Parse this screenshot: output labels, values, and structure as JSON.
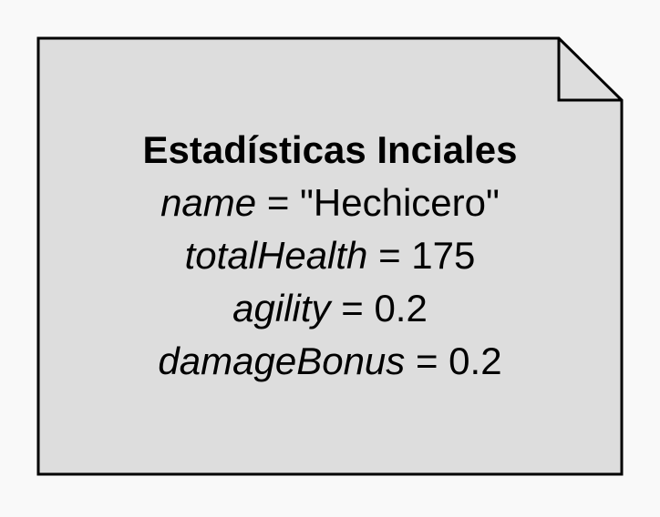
{
  "note": {
    "title": "Estadísticas Inciales",
    "attributes": [
      {
        "name": "name",
        "op": "=",
        "value": "\"Hechicero\""
      },
      {
        "name": "totalHealth",
        "op": "=",
        "value": "175"
      },
      {
        "name": "agility",
        "op": "=",
        "value": "0.2"
      },
      {
        "name": "damageBonus",
        "op": "=",
        "value": "0.2"
      }
    ]
  },
  "colors": {
    "background": "#f9f9f9",
    "note_fill": "#dddddd",
    "stroke": "#000000",
    "text": "#000000"
  }
}
